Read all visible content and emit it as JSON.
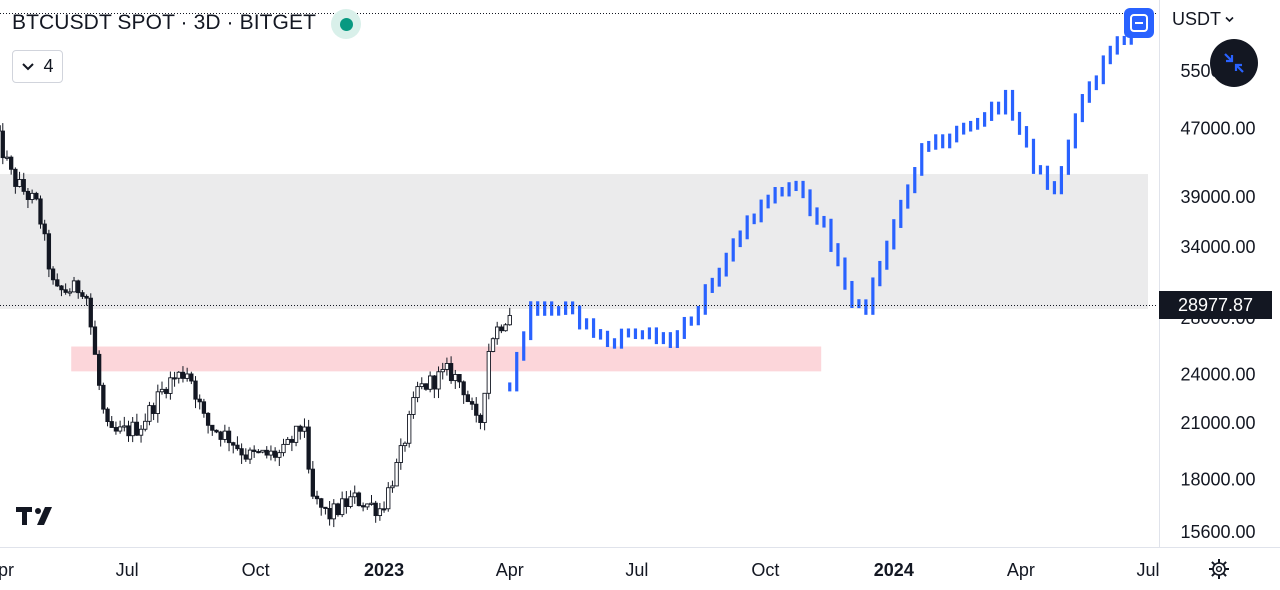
{
  "header": {
    "symbol_title": "BTCUSDT SPOT · 3D · BITGET",
    "collapse_count": "4",
    "currency": "USDT",
    "last_price": "28977.87"
  },
  "colors": {
    "history_candle": "#131722",
    "projection_bar": "#2962ff",
    "resistance_zone": "#ebebec",
    "support_zone": "#fcd6da",
    "price_line": "#131722"
  },
  "icons": {
    "status": "status-dot-icon",
    "collapse": "chevron-down-icon",
    "currency": "chevron-down-icon",
    "fullscreen": "fullscreen-icon",
    "shrink": "shrink-arrows-icon",
    "settings": "gear-icon",
    "logo": "tradingview-logo-icon"
  },
  "chart_data": {
    "type": "candlestick",
    "symbol": "BTCUSDT",
    "timeframe": "3D",
    "exchange": "BITGET",
    "y_axis": {
      "scale": "log",
      "ticks": [
        "15600.00",
        "18000.00",
        "21000.00",
        "24000.00",
        "28000.00",
        "34000.00",
        "39000.00",
        "47000.00",
        "55000.00"
      ],
      "range": [
        15000,
        66000
      ]
    },
    "x_axis": {
      "ticks": [
        {
          "label": "Apr",
          "date": "2022-04-01"
        },
        {
          "label": "Jul",
          "date": "2022-07-01"
        },
        {
          "label": "Oct",
          "date": "2022-10-01"
        },
        {
          "label": "2023",
          "date": "2023-01-01"
        },
        {
          "label": "Apr",
          "date": "2023-04-01"
        },
        {
          "label": "Jul",
          "date": "2023-07-01"
        },
        {
          "label": "Oct",
          "date": "2023-10-01"
        },
        {
          "label": "2024",
          "date": "2024-01-01"
        },
        {
          "label": "Apr",
          "date": "2024-04-01"
        },
        {
          "label": "Jul",
          "date": "2024-07-01"
        }
      ],
      "bold_labels": [
        "2023",
        "2024"
      ],
      "range": [
        "2022-03-27",
        "2024-07-01"
      ]
    },
    "current_price": 28977.87,
    "zones": [
      {
        "kind": "resistance",
        "from": "2022-03-27",
        "to": "2024-07-01",
        "low": 28700,
        "high": 41500
      },
      {
        "kind": "support",
        "from": "2022-05-22",
        "to": "2023-11-10",
        "low": 24200,
        "high": 25900
      }
    ],
    "history_anchors": [
      {
        "date": "2022-03-28",
        "close": 47000
      },
      {
        "date": "2022-04-10",
        "close": 41000
      },
      {
        "date": "2022-04-28",
        "close": 38000
      },
      {
        "date": "2022-05-10",
        "close": 30000
      },
      {
        "date": "2022-06-01",
        "close": 30500
      },
      {
        "date": "2022-06-13",
        "close": 22000
      },
      {
        "date": "2022-06-18",
        "close": 20300
      },
      {
        "date": "2022-07-10",
        "close": 20800
      },
      {
        "date": "2022-07-30",
        "close": 23500
      },
      {
        "date": "2022-08-14",
        "close": 24300
      },
      {
        "date": "2022-08-26",
        "close": 21000
      },
      {
        "date": "2022-09-12",
        "close": 20200
      },
      {
        "date": "2022-09-25",
        "close": 19200
      },
      {
        "date": "2022-10-20",
        "close": 19300
      },
      {
        "date": "2022-11-05",
        "close": 21000
      },
      {
        "date": "2022-11-09",
        "close": 17200
      },
      {
        "date": "2022-11-22",
        "close": 16300
      },
      {
        "date": "2022-12-10",
        "close": 17100
      },
      {
        "date": "2022-12-30",
        "close": 16600
      },
      {
        "date": "2023-01-12",
        "close": 19000
      },
      {
        "date": "2023-01-25",
        "close": 23000
      },
      {
        "date": "2023-02-16",
        "close": 24200
      },
      {
        "date": "2023-02-26",
        "close": 23400
      },
      {
        "date": "2023-03-10",
        "close": 20500
      },
      {
        "date": "2023-03-18",
        "close": 26500
      },
      {
        "date": "2023-04-01",
        "close": 28500
      }
    ],
    "projection_anchors": [
      {
        "date": "2023-04-01",
        "close": 23200
      },
      {
        "date": "2023-04-15",
        "close": 28800
      },
      {
        "date": "2023-05-12",
        "close": 28600
      },
      {
        "date": "2023-06-10",
        "close": 26200
      },
      {
        "date": "2023-06-27",
        "close": 27000
      },
      {
        "date": "2023-07-23",
        "close": 26200
      },
      {
        "date": "2023-08-08",
        "close": 27900
      },
      {
        "date": "2023-09-20",
        "close": 37000
      },
      {
        "date": "2023-10-20",
        "close": 40500
      },
      {
        "date": "2023-11-10",
        "close": 36500
      },
      {
        "date": "2023-12-03",
        "close": 29000
      },
      {
        "date": "2023-12-12",
        "close": 29000
      },
      {
        "date": "2024-01-20",
        "close": 44000
      },
      {
        "date": "2024-02-25",
        "close": 47500
      },
      {
        "date": "2024-03-22",
        "close": 51000
      },
      {
        "date": "2024-04-10",
        "close": 42500
      },
      {
        "date": "2024-04-25",
        "close": 39500
      },
      {
        "date": "2024-05-15",
        "close": 51000
      },
      {
        "date": "2024-06-10",
        "close": 60000
      },
      {
        "date": "2024-07-01",
        "close": 63000
      }
    ]
  }
}
